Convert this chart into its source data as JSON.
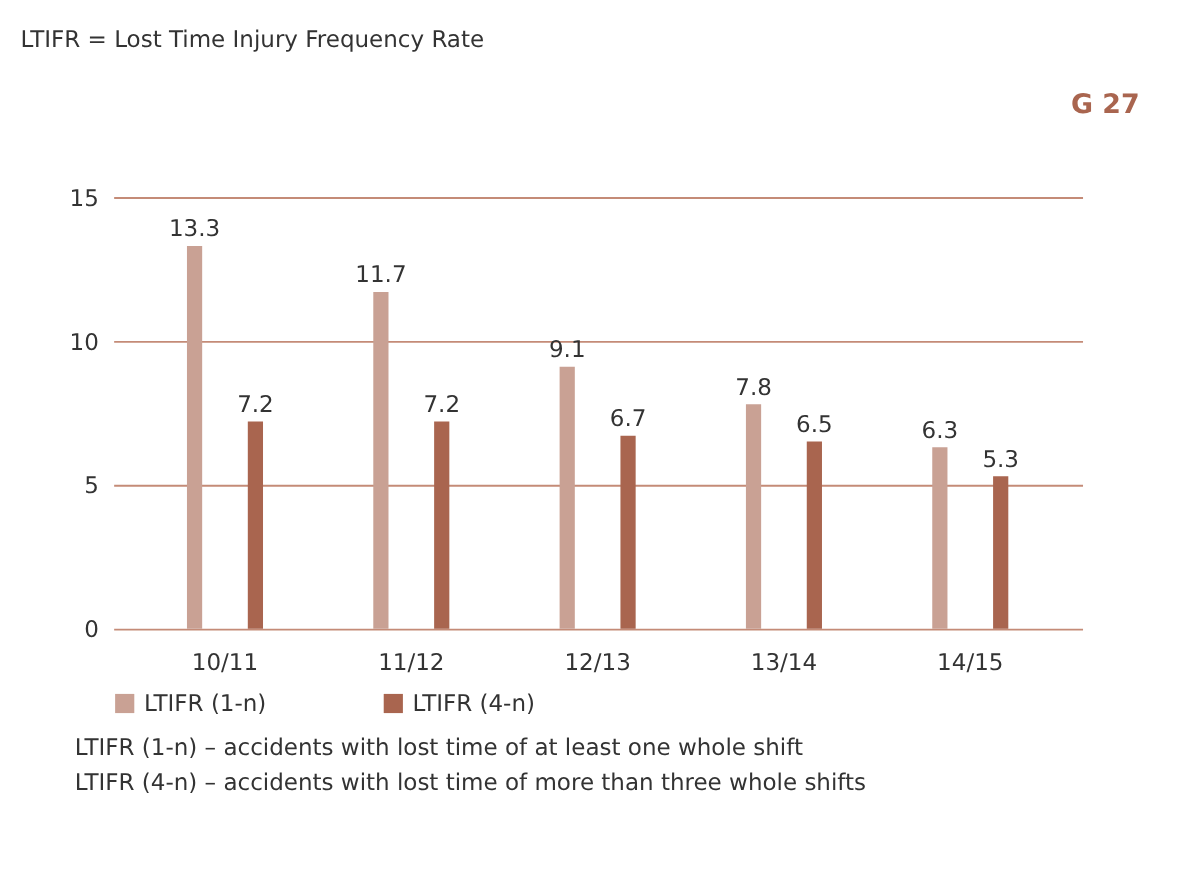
{
  "chart_data": {
    "type": "bar",
    "title": "LTIFR = Lost Time Injury Frequency Rate",
    "categories": [
      "10/11",
      "11/12",
      "12/13",
      "13/14",
      "14/15"
    ],
    "series": [
      {
        "name": "LTIFR (1-n)",
        "color": "#c9a194",
        "values": [
          13.3,
          11.7,
          9.1,
          7.8,
          6.3
        ]
      },
      {
        "name": "LTIFR (4-n)",
        "color": "#a9654f",
        "values": [
          7.2,
          7.2,
          6.7,
          6.5,
          5.3
        ]
      }
    ],
    "ylim": [
      0,
      15
    ],
    "yticks": [
      0,
      5,
      10,
      15
    ],
    "grid": "y",
    "legend": "bottom left",
    "data_labels": true,
    "annotations": [
      "G 27",
      "LTIFR (1-n) – accidents with lost time of at least one whole shift",
      "LTIFR (4-n) – accidents with lost time of more than three whole shifts"
    ]
  }
}
